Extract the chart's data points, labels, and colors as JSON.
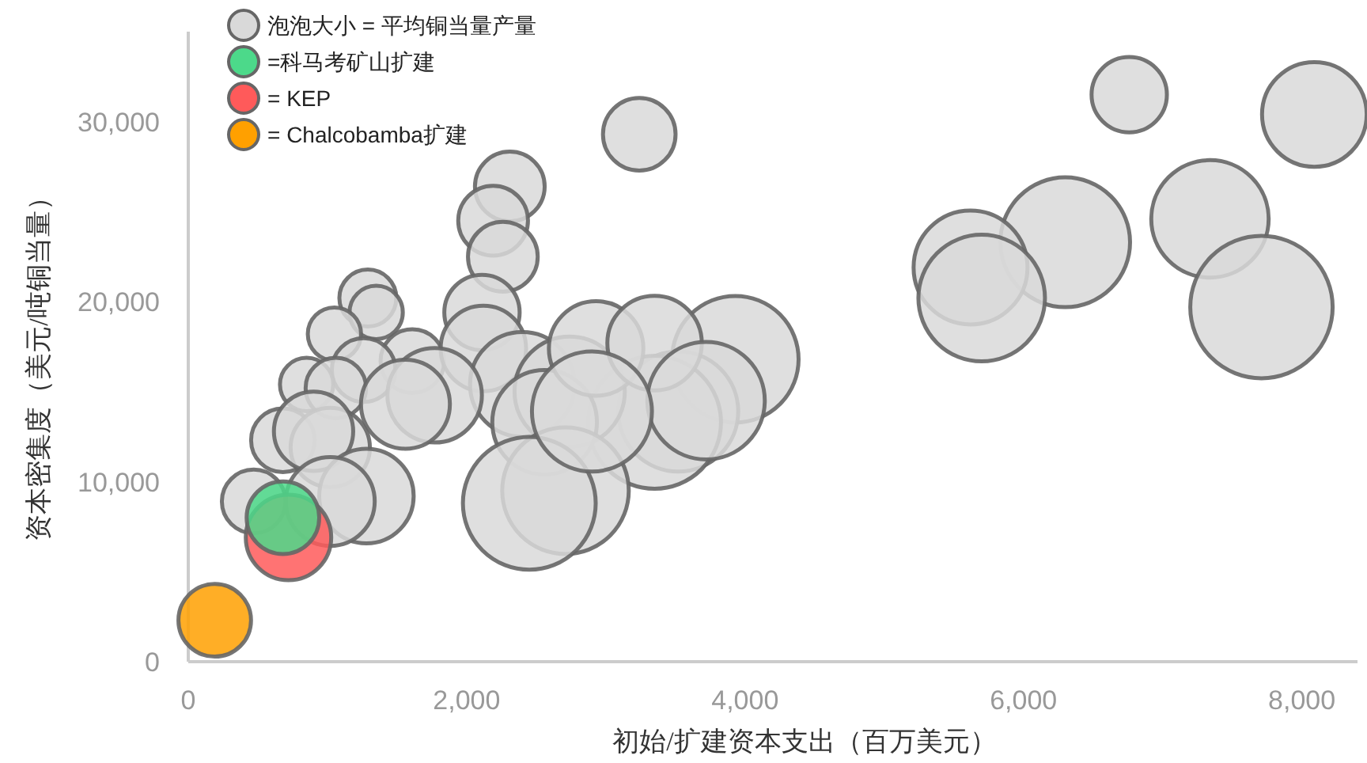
{
  "chart_data": {
    "type": "bubble",
    "xlabel": "初始/扩建资本支出（百万美元）",
    "ylabel": "资本密集度（美元/吨铜当量）",
    "legend": "top left",
    "grid": false,
    "xlim": [
      0,
      8400
    ],
    "xticks": [
      0,
      {
        "value": 2000,
        "label": "2,000"
      },
      {
        "value": 4000,
        "label": "4,000"
      },
      {
        "value": 6000,
        "label": "6,000"
      },
      {
        "value": 8000,
        "label": "8,000"
      }
    ],
    "ylim": [
      0,
      35000
    ],
    "yticks": [
      0,
      {
        "value": 10000,
        "label": "10,000"
      },
      {
        "value": 20000,
        "label": "20,000"
      },
      {
        "value": 30000,
        "label": "30,000"
      }
    ],
    "series": [
      {
        "name": "泡泡大小 = 平均铜当量产量",
        "color": "#d9d9d9",
        "x": [
          6760,
          8090,
          7340,
          6300,
          5620,
          5700,
          7710,
          3240,
          2310,
          2190,
          2260,
          2110,
          1290,
          1350,
          1050,
          1610,
          1260,
          850,
          1060,
          2120,
          3930,
          3520,
          3350,
          2400,
          2740,
          2560,
          2710,
          2450,
          1770,
          1560,
          680,
          1020,
          900,
          1280,
          1020,
          470,
          2930,
          3350,
          3720,
          2900
        ],
        "values": [
          31500,
          30400,
          24600,
          23300,
          21900,
          20200,
          19700,
          29300,
          26400,
          24500,
          22500,
          19400,
          20200,
          19400,
          18200,
          16700,
          16200,
          15400,
          15200,
          17400,
          16800,
          13900,
          13300,
          15400,
          15000,
          13300,
          9500,
          8800,
          14800,
          14300,
          12300,
          11900,
          12800,
          9200,
          8900,
          8900,
          17400,
          17700,
          14500,
          13900
        ],
        "sizes": [
          0.28,
          0.54,
          0.68,
          0.83,
          0.64,
          0.79,
          1,
          0.26,
          0.24,
          0.24,
          0.24,
          0.28,
          0.16,
          0.14,
          0.14,
          0.2,
          0.2,
          0.14,
          0.18,
          0.36,
          0.79,
          0.71,
          0.87,
          0.54,
          0.6,
          0.54,
          0.79,
          0.87,
          0.44,
          0.39,
          0.2,
          0.31,
          0.31,
          0.44,
          0.39,
          0.2,
          0.44,
          0.44,
          0.68,
          0.71
        ]
      },
      {
        "name": "=科马考矿山扩建",
        "color": "#4cd98a",
        "x": [
          680
        ],
        "values": [
          8000
        ],
        "sizes": [
          0.26
        ]
      },
      {
        "name": "= KEP",
        "color": "#ff5a5a",
        "x": [
          720
        ],
        "values": [
          6900
        ],
        "sizes": [
          0.36
        ]
      },
      {
        "name": "= Chalcobamba扩建",
        "color": "#ffa000",
        "x": [
          190
        ],
        "values": [
          2300
        ],
        "sizes": [
          0.26
        ]
      }
    ]
  }
}
